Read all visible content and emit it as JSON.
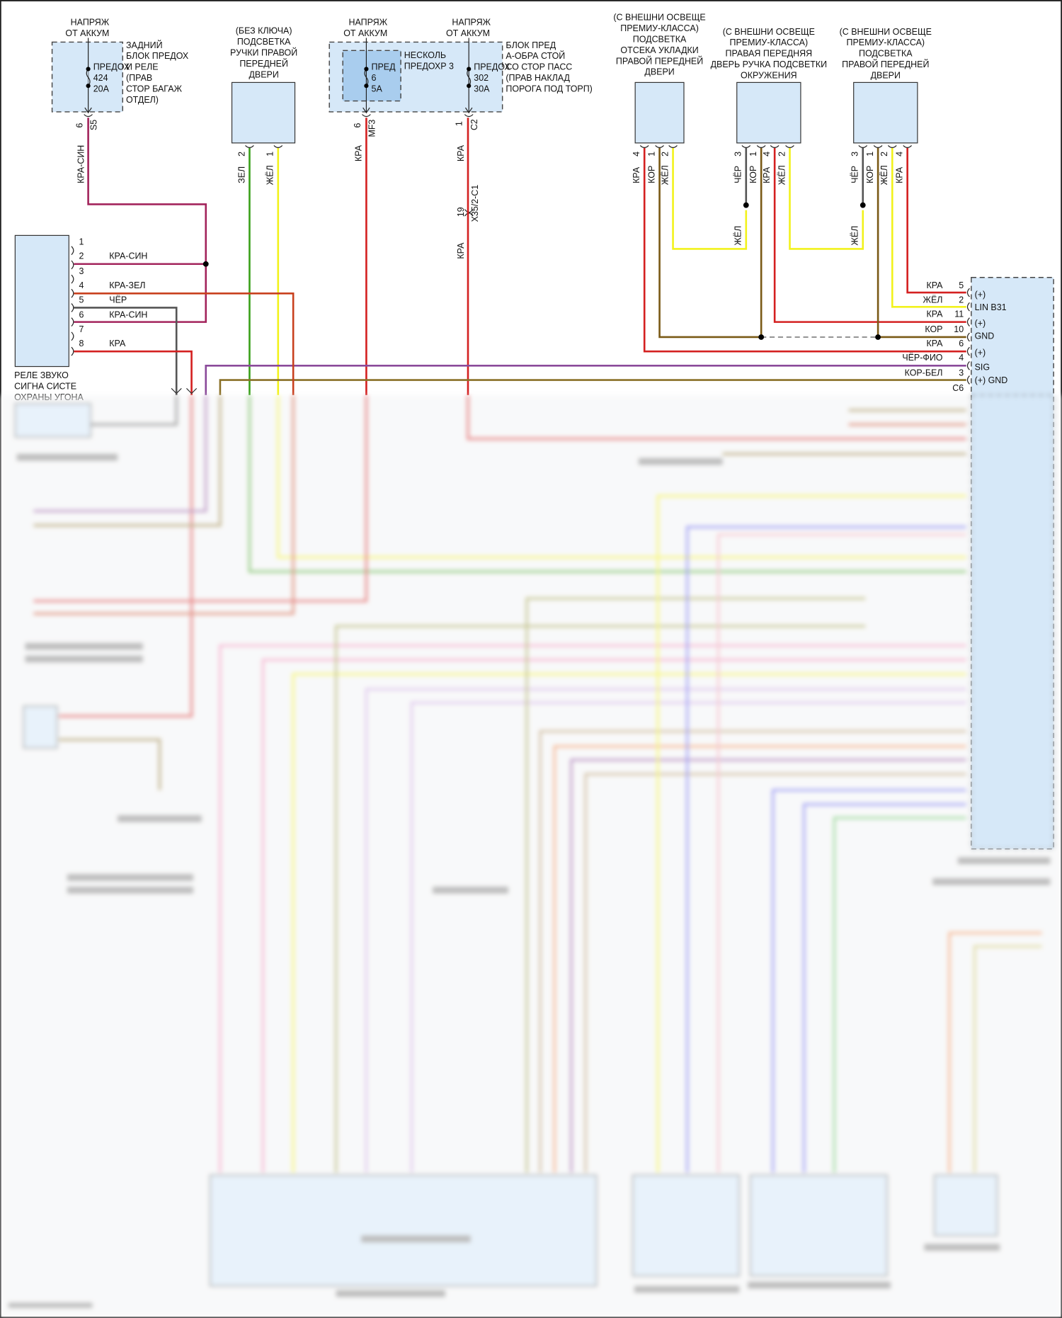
{
  "colors": {
    "kra": "#d42020",
    "kra_sin": "#a3245c",
    "kra_zel": "#c8401e",
    "cher": "#555555",
    "zel": "#3aa01a",
    "zhel": "#f2f21c",
    "kor": "#7a5a16",
    "cher_fio": "#8a4a9a",
    "kor_bel": "#8a7028",
    "box_fill": "#d6e8f8",
    "inner_box_fill": "#a9cdee"
  },
  "rear_fuse_block": {
    "supply": [
      "НАПРЯЖ",
      "ОТ АККУМ"
    ],
    "name": [
      "ЗАДНИЙ",
      "БЛОК ПРЕДОХ",
      "И РЕЛЕ",
      "(ПРАВ",
      "СТОР БАГАЖ",
      "ОТДЕЛ)"
    ],
    "fuse": [
      "ПРЕДОХ",
      "424",
      "20A"
    ],
    "pin": "6",
    "connector": "S5",
    "wire": "КРА-СИН"
  },
  "nokey_handle_light": {
    "name": [
      "(БЕЗ КЛЮЧА)",
      "ПОДСВЕТКА",
      "РУЧКИ ПРАВОЙ",
      "ПЕРЕДНЕЙ",
      "ДВЕРИ"
    ],
    "pins": [
      {
        "num": "2",
        "wire": "ЗЕЛ"
      },
      {
        "num": "1",
        "wire": "ЖЁЛ"
      }
    ]
  },
  "front_fuse_block": {
    "supply_1": [
      "НАПРЯЖ",
      "ОТ АККУМ"
    ],
    "supply_2": [
      "НАПРЯЖ",
      "ОТ АККУМ"
    ],
    "inner_name": [
      "НЕСКОЛЬ",
      "ПРЕДОХР 3"
    ],
    "fuse_1": [
      "ПРЕД",
      "6",
      "5A"
    ],
    "fuse_2": [
      "ПРЕДОХ",
      "302",
      "30A"
    ],
    "name": [
      "БЛОК ПРЕД",
      "А-ОБРА СТОЙ",
      "СО СТОР ПАСС",
      "(ПРАВ НАКЛАД",
      "ПОРОГА ПОД ТОРП)"
    ],
    "pin_1": "6",
    "connector_1": "MF3",
    "wire_1": "КРА",
    "pin_2": "1",
    "connector_2": "C2",
    "wire_2": "КРА",
    "inline_pin": "19",
    "inline_connector": "X35/2-C1",
    "wire_3": "КРА"
  },
  "lamp_storage": {
    "name": [
      "(С ВНЕШНИ ОСВЕЩЕ",
      "ПРЕМИУ-КЛАССА)",
      "ПОДСВЕТКА",
      "ОТСЕКА УКЛАДКИ",
      "ПРАВОЙ ПЕРЕДНЕЙ",
      "ДВЕРИ"
    ],
    "pins": [
      {
        "num": "4",
        "wire": "КРА"
      },
      {
        "num": "1",
        "wire": "КОР"
      },
      {
        "num": "2",
        "wire": "ЖЁЛ"
      }
    ]
  },
  "lamp_ambient": {
    "name": [
      "(С ВНЕШНИ ОСВЕЩЕ",
      "ПРЕМИУ-КЛАССА)",
      "ПРАВАЯ ПЕРЕДНЯЯ",
      "ДВЕРЬ РУЧКА ПОДСВЕТКИ",
      "ОКРУЖЕНИЯ"
    ],
    "pins": [
      {
        "num": "3",
        "wire": "ЧЁР"
      },
      {
        "num": "1",
        "wire": "КОР"
      },
      {
        "num": "4",
        "wire": "КРА"
      },
      {
        "num": "2",
        "wire": "ЖЁЛ"
      }
    ],
    "jumper_wire": "ЖЁЛ"
  },
  "lamp_door": {
    "name": [
      "(С ВНЕШНИ ОСВЕЩЕ",
      "ПРЕМИУ-КЛАССА)",
      "ПОДСВЕТКА",
      "ПРАВОЙ ПЕРЕДНЕЙ",
      "ДВЕРИ"
    ],
    "pins": [
      {
        "num": "3",
        "wire": "ЧЁР"
      },
      {
        "num": "1",
        "wire": "КОР"
      },
      {
        "num": "2",
        "wire": "ЖЁЛ"
      },
      {
        "num": "4",
        "wire": "КРА"
      }
    ],
    "jumper_wire": "ЖЁЛ"
  },
  "door_module": {
    "rows": [
      {
        "wire": "КРА",
        "pin": "5",
        "func": "(+)"
      },
      {
        "wire": "ЖЁЛ",
        "pin": "2",
        "func": "LIN B31"
      },
      {
        "wire": "КРА",
        "pin": "11",
        "func": "(+)"
      },
      {
        "wire": "КОР",
        "pin": "10",
        "func": "GND"
      },
      {
        "wire": "КРА",
        "pin": "6",
        "func": "(+)"
      },
      {
        "wire": "ЧЁР-ФИО",
        "pin": "4",
        "func": "SIG"
      },
      {
        "wire": "КОР-БЕЛ",
        "pin": "3",
        "func": "(+) GND"
      }
    ],
    "connector": "C6"
  },
  "horn_relay": {
    "pins": [
      {
        "num": "1",
        "wire": ""
      },
      {
        "num": "2",
        "wire": "КРА-СИН"
      },
      {
        "num": "3",
        "wire": ""
      },
      {
        "num": "4",
        "wire": "КРА-ЗЕЛ"
      },
      {
        "num": "5",
        "wire": "ЧЁР"
      },
      {
        "num": "6",
        "wire": "КРА-СИН"
      },
      {
        "num": "7",
        "wire": ""
      },
      {
        "num": "8",
        "wire": "КРА"
      }
    ],
    "name": [
      "РЕЛЕ ЗВУКО",
      "СИГНА СИСТЕ",
      "ОХРАНЫ УГОНА"
    ]
  }
}
